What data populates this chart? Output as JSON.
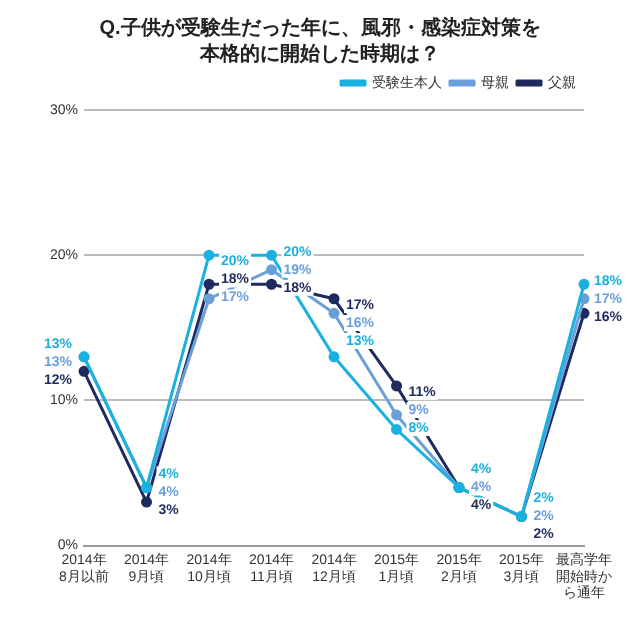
{
  "chart_data": {
    "type": "line",
    "title": "Q.子供が受験生だった年に、風邪・感染症対策を本格的に開始した時期は？",
    "categories": [
      "2014年8月以前",
      "2014年9月頃",
      "2014年10月頃",
      "2014年11月頃",
      "2014年12月頃",
      "2015年1月頃",
      "2015年2月頃",
      "2015年3月頃",
      "最高学年開始時から通年"
    ],
    "series": [
      {
        "name": "受験生本人",
        "color": "#1ab0e0",
        "values": [
          13,
          4,
          20,
          20,
          13,
          8,
          4,
          2,
          18
        ],
        "value_labels": [
          "13%",
          "4%",
          "20%",
          "20%",
          "13%",
          "8%",
          "4%",
          "2%",
          "18%"
        ]
      },
      {
        "name": "母親",
        "color": "#6a9fd8",
        "values": [
          13,
          4,
          17,
          19,
          16,
          9,
          4,
          2,
          17
        ],
        "value_labels": [
          "13%",
          "4%",
          "17%",
          "19%",
          "16%",
          "9%",
          "4%",
          "2%",
          "17%"
        ]
      },
      {
        "name": "父親",
        "color": "#1f2a5e",
        "values": [
          12,
          3,
          18,
          18,
          17,
          11,
          4,
          2,
          16
        ],
        "value_labels": [
          "12%",
          "3%",
          "18%",
          "18%",
          "17%",
          "11%",
          "4%",
          "2%",
          "16%"
        ]
      }
    ],
    "ylim": [
      0,
      30
    ],
    "yticks": [
      {
        "value": 0,
        "label": "0%"
      },
      {
        "value": 10,
        "label": "10%"
      },
      {
        "value": 20,
        "label": "20%"
      },
      {
        "value": 30,
        "label": "30%"
      }
    ],
    "grid": "y",
    "legend": "top right",
    "marker": "circle",
    "line_style": "solid"
  }
}
